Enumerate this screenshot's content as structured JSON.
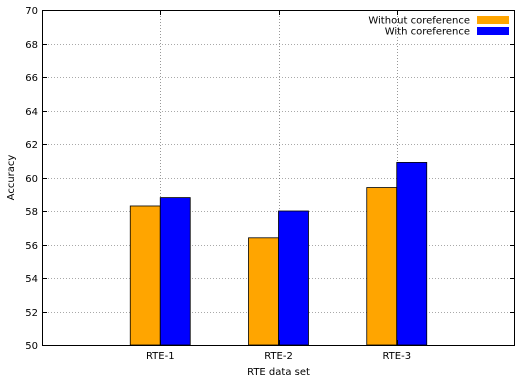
{
  "chart_data": {
    "type": "bar",
    "categories": [
      "RTE-1",
      "RTE-2",
      "RTE-3"
    ],
    "series": [
      {
        "name": "Without coreference",
        "values": [
          58.3,
          56.4,
          59.4
        ],
        "color": "#FFA500"
      },
      {
        "name": "With coreference",
        "values": [
          58.8,
          58.0,
          60.9
        ],
        "color": "#0000FF"
      }
    ],
    "xlabel": "RTE data set",
    "ylabel": "Accuracy",
    "ylim": [
      50,
      70
    ],
    "yticks": [
      50,
      52,
      54,
      56,
      58,
      60,
      62,
      64,
      66,
      68,
      70
    ],
    "grid": true,
    "legend_position": "top-right"
  }
}
